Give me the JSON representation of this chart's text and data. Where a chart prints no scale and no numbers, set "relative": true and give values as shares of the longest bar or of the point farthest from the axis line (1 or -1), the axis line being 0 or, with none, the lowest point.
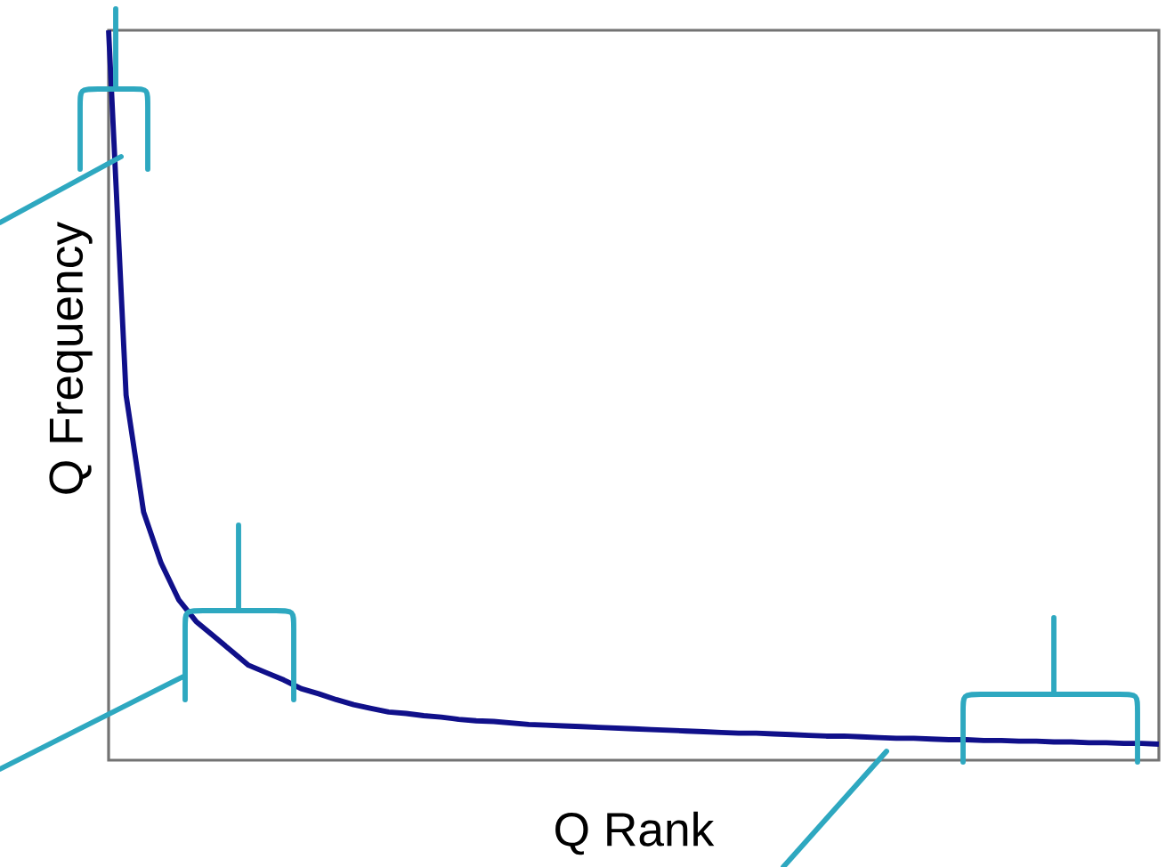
{
  "chart_data": {
    "type": "line",
    "xlabel": "Q Rank",
    "ylabel": "Q Frequency",
    "relative": true,
    "tick_labels": false,
    "categories": [
      null,
      null,
      null,
      null,
      null,
      null,
      null,
      null,
      null,
      null,
      null,
      null,
      null,
      null,
      null,
      null,
      null,
      null,
      null,
      null,
      null,
      null,
      null,
      null,
      null,
      null,
      null,
      null,
      null,
      null,
      null,
      null,
      null,
      null,
      null,
      null,
      null,
      null,
      null,
      null,
      null,
      null,
      null,
      null,
      null,
      null,
      null,
      null,
      null,
      null,
      null,
      null,
      null,
      null,
      null,
      null,
      null,
      null,
      null,
      null,
      null
    ],
    "series": [
      {
        "color": "#10108a",
        "values": [
          1.0,
          0.5,
          0.34,
          0.27,
          0.22,
          0.19,
          0.17,
          0.15,
          0.13,
          0.12,
          0.11,
          0.098,
          0.091,
          0.083,
          0.076,
          0.071,
          0.066,
          0.064,
          0.061,
          0.059,
          0.056,
          0.054,
          0.053,
          0.051,
          0.049,
          0.048,
          0.047,
          0.046,
          0.045,
          0.044,
          0.043,
          0.042,
          0.041,
          0.04,
          0.039,
          0.038,
          0.037,
          0.037,
          0.036,
          0.035,
          0.034,
          0.033,
          0.033,
          0.032,
          0.031,
          0.03,
          0.03,
          0.029,
          0.028,
          0.028,
          0.027,
          0.027,
          0.026,
          0.026,
          0.025,
          0.025,
          0.024,
          0.024,
          0.023,
          0.023,
          0.022
        ]
      }
    ]
  }
}
